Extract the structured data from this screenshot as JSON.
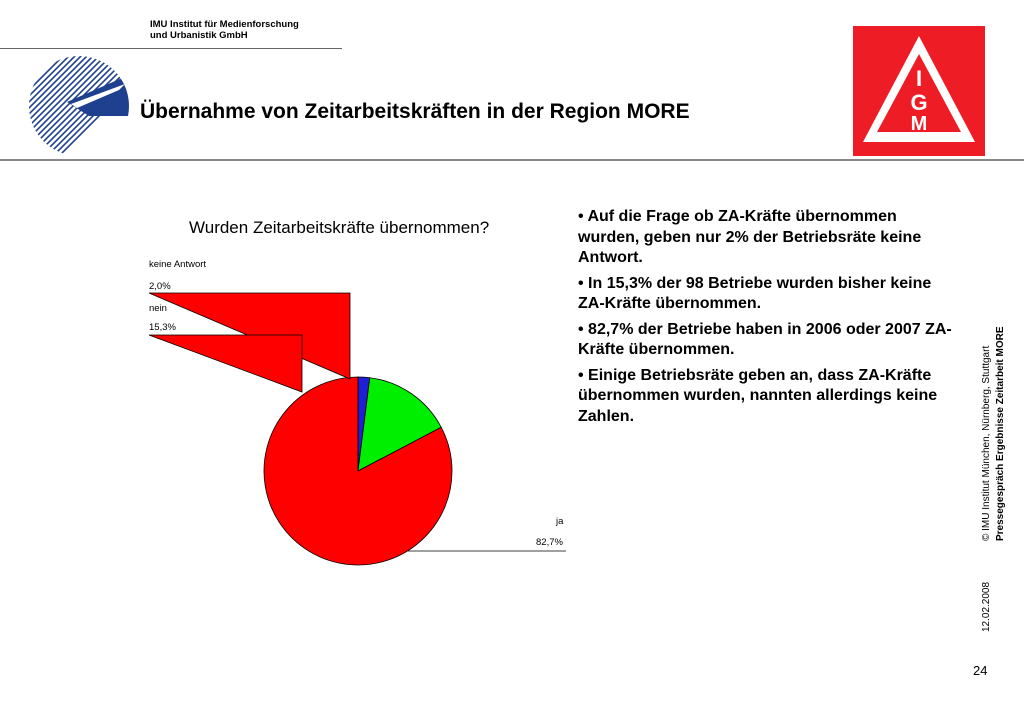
{
  "header": {
    "institute_line1": "IMU Institut für Medienforschung",
    "institute_line2": "und Urbanistik GmbH",
    "title": "Übernahme von Zeitarbeitskräften in der Region MORE"
  },
  "logos": {
    "left": "imu-logo",
    "right": "ig-metall-logo",
    "right_letters": [
      "I",
      "G",
      "M"
    ],
    "brand_red": "#ee1c25",
    "imu_blue": "#1f3f8f"
  },
  "chart_data": {
    "type": "pie",
    "title": "Wurden Zeitarbeitskräfte übernommen?",
    "categories": [
      "keine Antwort",
      "nein",
      "ja"
    ],
    "values": [
      2.0,
      15.3,
      82.7
    ],
    "value_labels": [
      "2,0%",
      "15,3%",
      "82,7%"
    ],
    "colors": [
      "#1f1fd6",
      "#00ee00",
      "#ff0000"
    ],
    "start": "top, clockwise",
    "legend": "none"
  },
  "bullets": [
    "• Auf die Frage ob ZA-Kräfte übernommen wurden, geben nur 2% der Betriebsräte keine Antwort.",
    "• In 15,3% der 98 Betriebe wurden bisher keine ZA-Kräfte übernommen.",
    "• 82,7% der Betriebe haben in 2006 oder 2007 ZA-Kräfte übernommen.",
    "• Einige Betriebsräte geben an, dass ZA-Kräfte übernommen wurden, nannten allerdings keine Zahlen."
  ],
  "sidebar": {
    "copyright": "© IMU Institut München, Nürnberg, Stuttgart",
    "event": "Pressegespräch Ergebnisse Zeitarbeit MORE",
    "date": "12.02.2008"
  },
  "page_number": "24"
}
